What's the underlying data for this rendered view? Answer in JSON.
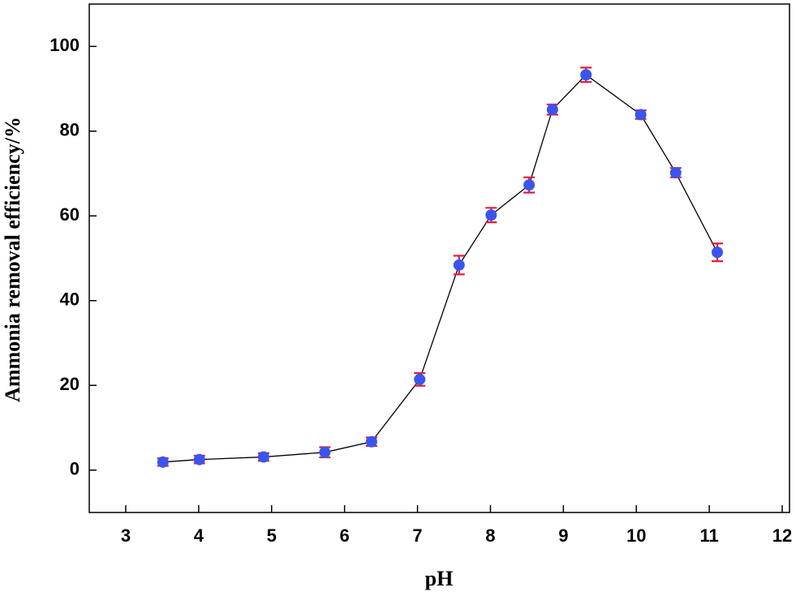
{
  "chart_data": {
    "type": "line",
    "xlabel": "pH",
    "ylabel": "Ammonia removal efficiency/%",
    "xlim": [
      2.5,
      12.1
    ],
    "xticks": [
      3,
      4,
      5,
      6,
      7,
      8,
      9,
      10,
      11,
      12
    ],
    "ylim": [
      -10,
      110
    ],
    "yticks": [
      0,
      20,
      40,
      60,
      80,
      100
    ],
    "series": [
      {
        "x": [
          3.51,
          4.01,
          4.89,
          5.73,
          6.37,
          7.03,
          7.57,
          8.01,
          8.53,
          8.85,
          9.31,
          10.06,
          10.54,
          11.11
        ],
        "values": [
          1.9,
          2.5,
          3.1,
          4.2,
          6.7,
          21.4,
          48.4,
          60.2,
          67.3,
          85.1,
          93.3,
          83.9,
          70.2,
          51.4
        ],
        "errors": [
          0.9,
          0.9,
          0.9,
          1.2,
          1.0,
          1.5,
          2.2,
          1.7,
          1.8,
          1.2,
          1.7,
          1.0,
          1.1,
          2.1
        ],
        "color": "#3a55ee",
        "error_color": "#e0203a",
        "line_color": "#000000"
      }
    ]
  }
}
